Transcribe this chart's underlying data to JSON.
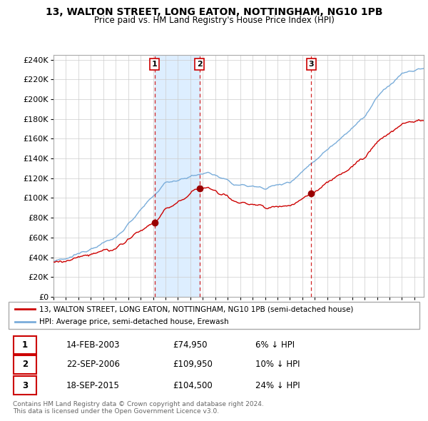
{
  "title1": "13, WALTON STREET, LONG EATON, NOTTINGHAM, NG10 1PB",
  "title2": "Price paid vs. HM Land Registry's House Price Index (HPI)",
  "ylabel_ticks": [
    "£0",
    "£20K",
    "£40K",
    "£60K",
    "£80K",
    "£100K",
    "£120K",
    "£140K",
    "£160K",
    "£180K",
    "£200K",
    "£220K",
    "£240K"
  ],
  "ytick_values": [
    0,
    20000,
    40000,
    60000,
    80000,
    100000,
    120000,
    140000,
    160000,
    180000,
    200000,
    220000,
    240000
  ],
  "ylim": [
    0,
    245000
  ],
  "xlim_start": 1995.0,
  "xlim_end": 2024.75,
  "sale_dates": [
    2003.12,
    2006.73,
    2015.72
  ],
  "sale_prices": [
    74950,
    109950,
    104500
  ],
  "sale_labels": [
    "1",
    "2",
    "3"
  ],
  "shade_color": "#ddeeff",
  "legend_label_red": "13, WALTON STREET, LONG EATON, NOTTINGHAM, NG10 1PB (semi-detached house)",
  "legend_label_blue": "HPI: Average price, semi-detached house, Erewash",
  "table_data": [
    [
      "1",
      "14-FEB-2003",
      "£74,950",
      "6% ↓ HPI"
    ],
    [
      "2",
      "22-SEP-2006",
      "£109,950",
      "10% ↓ HPI"
    ],
    [
      "3",
      "18-SEP-2015",
      "£104,500",
      "24% ↓ HPI"
    ]
  ],
  "footnote": "Contains HM Land Registry data © Crown copyright and database right 2024.\nThis data is licensed under the Open Government Licence v3.0.",
  "red_color": "#cc0000",
  "blue_color": "#7aadda",
  "bg_color": "#ffffff",
  "grid_color": "#cccccc"
}
